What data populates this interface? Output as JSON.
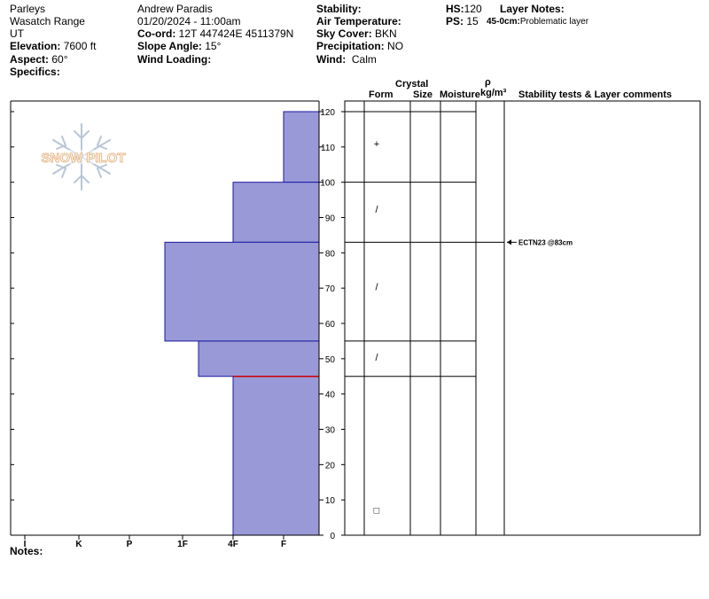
{
  "header": {
    "location": "Parleys",
    "range": "Wasatch Range",
    "state": "UT",
    "elevation_label": "Elevation:",
    "elevation_value": "7600 ft",
    "aspect_label": "Aspect:",
    "aspect_value": "60°",
    "specifics_label": "Specifics:",
    "observer": "Andrew Paradis",
    "datetime": "01/20/2024 - 11:00am",
    "coord_label": "Co-ord:",
    "coord_value": "12T 447424E 4511379N",
    "slope_label": "Slope Angle:",
    "slope_value": "15°",
    "wind_loading_label": "Wind Loading:",
    "stability_label": "Stability:",
    "air_temp_label": "Air Temperature:",
    "sky_label": "Sky Cover:",
    "sky_value": "BKN",
    "precip_label": "Precipitation:",
    "precip_value": "NO",
    "wind_label": "Wind:",
    "wind_value": "Calm",
    "hs_label": "HS:",
    "hs_value": "120",
    "ps_label": "PS:",
    "ps_value": "15",
    "layer_notes_label": "Layer Notes:",
    "layer_note_depth": "45-0cm:",
    "layer_note_text": "Problematic layer"
  },
  "watermark": "SNOW PILOT",
  "columns": {
    "crystal": "Crystal",
    "form": "Form",
    "size": "Size",
    "moisture": "Moisture",
    "rho": "ρ",
    "density": "kg/m³",
    "stability_comments": "Stability tests & Layer comments"
  },
  "notes_label": "Notes:",
  "chart_data": {
    "type": "bar",
    "title": "",
    "orientation": "horizontal-step profile (height vs hand hardness)",
    "y_range": [
      0,
      120
    ],
    "y_ticks": [
      0,
      10,
      20,
      30,
      40,
      50,
      60,
      70,
      80,
      90,
      100,
      110,
      120
    ],
    "hardness_scale": [
      "I",
      "K",
      "P",
      "1F",
      "4F",
      "F"
    ],
    "hardness_scale_order": "left-to-right increasing from F (right edge) to I (left edge)",
    "layers": [
      {
        "bottom": 100,
        "top": 120,
        "hardness": "F+",
        "grain_form": "+"
      },
      {
        "bottom": 83,
        "top": 100,
        "hardness": "4F",
        "grain_form": "/"
      },
      {
        "bottom": 55,
        "top": 83,
        "hardness": "1F+",
        "grain_form": "/"
      },
      {
        "bottom": 45,
        "top": 55,
        "hardness": "1F-",
        "grain_form": "/"
      },
      {
        "bottom": 0,
        "top": 45,
        "hardness": "4F",
        "grain_form": "□"
      }
    ],
    "layer_boundaries": [
      45,
      55,
      83,
      100,
      120
    ],
    "problematic_layer_top": 45,
    "stability_tests": [
      {
        "height": 83,
        "label": "ECTN23 @83cm"
      }
    ],
    "bar_color": "#9999d8",
    "bar_outline": "#1a1aa0",
    "highlight_color": "#cc0000"
  }
}
